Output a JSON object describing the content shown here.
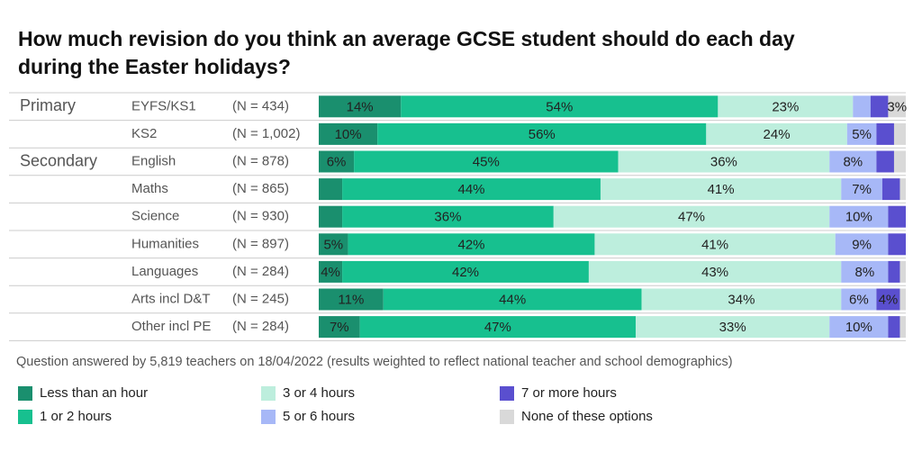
{
  "chart_data": {
    "type": "bar",
    "orientation": "horizontal",
    "stacked": true,
    "title": "How much revision do you think an average GCSE student should do each day during the Easter holidays?",
    "title_lines": [
      "How much revision do you think an average GCSE student should do each day",
      "during the Easter holidays?"
    ],
    "group_labels": [
      "Primary",
      null,
      "Secondary",
      null,
      null,
      null,
      null,
      null,
      null
    ],
    "categories": [
      "EYFS/KS1",
      "KS2",
      "English",
      "Maths",
      "Science",
      "Humanities",
      "Languages",
      "Arts incl D&T",
      "Other incl PE"
    ],
    "n_labels": [
      "(N = 434)",
      "(N = 1,002)",
      "(N = 878)",
      "(N = 865)",
      "(N = 930)",
      "(N = 897)",
      "(N = 284)",
      "(N = 245)",
      "(N = 284)"
    ],
    "xlim": [
      0,
      100
    ],
    "series": [
      {
        "name": "Less than an hour",
        "color": "#1a8f6e",
        "values": [
          14,
          10,
          6,
          4,
          4,
          5,
          4,
          11,
          7
        ],
        "value_labels": [
          "14%",
          "10%",
          "6%",
          null,
          null,
          "5%",
          "4%",
          "11%",
          "7%"
        ]
      },
      {
        "name": "1 or 2 hours",
        "color": "#17c08f",
        "values": [
          54,
          56,
          45,
          44,
          36,
          42,
          42,
          44,
          47
        ],
        "value_labels": [
          "54%",
          "56%",
          "45%",
          "44%",
          "36%",
          "42%",
          "42%",
          "44%",
          "47%"
        ]
      },
      {
        "name": "3 or 4 hours",
        "color": "#bdeedd",
        "values": [
          23,
          24,
          36,
          41,
          47,
          41,
          43,
          34,
          33
        ],
        "value_labels": [
          "23%",
          "24%",
          "36%",
          "41%",
          "47%",
          "41%",
          "43%",
          "34%",
          "33%"
        ]
      },
      {
        "name": "5 or 6 hours",
        "color": "#a7b8f7",
        "values": [
          3,
          5,
          8,
          7,
          10,
          9,
          8,
          6,
          10
        ],
        "value_labels": [
          null,
          "5%",
          "8%",
          "7%",
          "10%",
          "9%",
          "8%",
          "6%",
          "10%"
        ]
      },
      {
        "name": "7 or more hours",
        "color": "#5a4fcf",
        "values": [
          3,
          3,
          3,
          3,
          3,
          3,
          2,
          4,
          2
        ],
        "value_labels": [
          null,
          null,
          null,
          null,
          null,
          null,
          null,
          "4%",
          null
        ]
      },
      {
        "name": "None of these options",
        "color": "#d9d9d9",
        "values": [
          3,
          2,
          2,
          1,
          0,
          0,
          1,
          1,
          1
        ],
        "value_labels": [
          "3%",
          null,
          null,
          null,
          null,
          null,
          null,
          null,
          null
        ]
      }
    ],
    "footnote": "Question answered by 5,819 teachers on 18/04/2022 (results weighted to reflect national teacher and school demographics)"
  }
}
